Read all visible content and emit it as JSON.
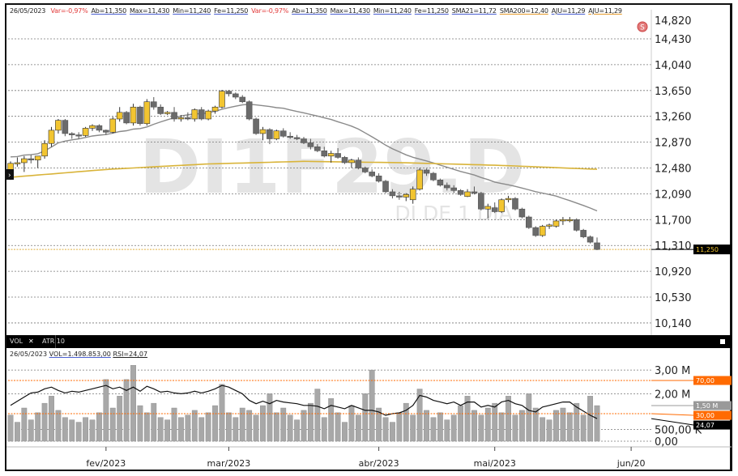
{
  "header": {
    "date": "26/05/2023",
    "items": [
      {
        "text": "Var=-0,97%",
        "style": "red"
      },
      {
        "text": "Ab=11,350",
        "style": "blue"
      },
      {
        "text": "Max=11,430",
        "style": "blue"
      },
      {
        "text": "Min=11,240",
        "style": "blue"
      },
      {
        "text": "Fe=11,250",
        "style": "blue"
      },
      {
        "text": "Var=-0,97%",
        "style": "red"
      },
      {
        "text": "Ab=11,350",
        "style": "gray"
      },
      {
        "text": "Max=11,430",
        "style": "blue"
      },
      {
        "text": "Min=11,240",
        "style": "blue"
      },
      {
        "text": "Fe=11,250",
        "style": "blue"
      },
      {
        "text": "SMA21=11,72",
        "style": "gray"
      },
      {
        "text": "SMA200=12,40",
        "style": "orange"
      },
      {
        "text": "AJU=11,29",
        "style": "blue"
      },
      {
        "text": "AJU=11,29",
        "style": "orange"
      }
    ]
  },
  "watermark": {
    "symbol": "DI1F29.D",
    "description": "DI DE 1 DIA"
  },
  "signal_icon": "S",
  "price_axis": {
    "ticks": [
      "14,820",
      "14,430",
      "14,040",
      "13,650",
      "13,260",
      "12,870",
      "12,480",
      "12,090",
      "11,700",
      "11,310",
      "10,920",
      "10,530",
      "10,140"
    ],
    "tick_values": [
      14.82,
      14.43,
      14.04,
      13.65,
      13.26,
      12.87,
      12.48,
      12.09,
      11.7,
      11.31,
      10.92,
      10.53,
      10.14
    ],
    "last_label": "11,250",
    "last_value": 11.25
  },
  "colors": {
    "up": "#f2c531",
    "down": "#6b6b6b",
    "sma21": "#8a8a8a",
    "sma200": "#d9b43a",
    "rsi_band": "#ff6a00",
    "volume": "#a8a8a8"
  },
  "lower_panel": {
    "tabs": [
      "VOL",
      "ATR 10"
    ],
    "close_tab_icon": "close-icon",
    "info": "26/05/2023",
    "vol_text": "VOL=1.498.853,00",
    "rsi_text": "RSI=24,07",
    "axis_ticks": [
      "3,00 M",
      "2,00 M",
      "500,00 K",
      "0,00"
    ],
    "axis_values": [
      3.0,
      2.0,
      0.5,
      0.0
    ],
    "rsi_levels": [
      {
        "label": "70,00",
        "value": 70
      },
      {
        "label": "30,00",
        "value": 30
      }
    ],
    "vol_last_label": "1,50 M",
    "rsi_last_label": "24,07"
  },
  "x_axis": [
    {
      "label": "fev/2023",
      "bar": 14
    },
    {
      "label": "mar/2023",
      "bar": 32
    },
    {
      "label": "abr/2023",
      "bar": 54
    },
    {
      "label": "mai/2023",
      "bar": 71
    },
    {
      "label": "jun/20",
      "bar": 91
    }
  ],
  "chart_data": {
    "type": "candlestick",
    "ohlc": [
      [
        12.35,
        12.58,
        12.3,
        12.55
      ],
      [
        12.55,
        12.64,
        12.5,
        12.56
      ],
      [
        12.56,
        12.66,
        12.42,
        12.62
      ],
      [
        12.62,
        12.68,
        12.55,
        12.6
      ],
      [
        12.6,
        12.66,
        12.48,
        12.66
      ],
      [
        12.66,
        12.9,
        12.62,
        12.85
      ],
      [
        12.85,
        13.1,
        12.8,
        13.05
      ],
      [
        13.05,
        13.22,
        13.0,
        13.2
      ],
      [
        13.2,
        13.22,
        12.96,
        13.0
      ],
      [
        13.0,
        13.02,
        12.92,
        12.98
      ],
      [
        12.98,
        13.02,
        12.92,
        12.97
      ],
      [
        12.97,
        13.1,
        12.95,
        13.08
      ],
      [
        13.08,
        13.14,
        13.04,
        13.12
      ],
      [
        13.12,
        13.14,
        13.02,
        13.05
      ],
      [
        13.05,
        13.06,
        12.98,
        13.02
      ],
      [
        13.02,
        13.25,
        13.0,
        13.22
      ],
      [
        13.22,
        13.4,
        13.18,
        13.32
      ],
      [
        13.32,
        13.34,
        13.14,
        13.16
      ],
      [
        13.16,
        13.45,
        13.12,
        13.4
      ],
      [
        13.4,
        13.42,
        13.12,
        13.15
      ],
      [
        13.15,
        13.52,
        13.12,
        13.48
      ],
      [
        13.48,
        13.55,
        13.36,
        13.4
      ],
      [
        13.4,
        13.44,
        13.28,
        13.3
      ],
      [
        13.3,
        13.34,
        13.28,
        13.32
      ],
      [
        13.32,
        13.4,
        13.18,
        13.22
      ],
      [
        13.22,
        13.28,
        13.18,
        13.24
      ],
      [
        13.24,
        13.32,
        13.2,
        13.22
      ],
      [
        13.22,
        13.38,
        13.18,
        13.36
      ],
      [
        13.36,
        13.4,
        13.2,
        13.22
      ],
      [
        13.22,
        13.36,
        13.2,
        13.34
      ],
      [
        13.34,
        13.42,
        13.3,
        13.4
      ],
      [
        13.4,
        13.66,
        13.38,
        13.64
      ],
      [
        13.64,
        13.66,
        13.56,
        13.6
      ],
      [
        13.6,
        13.62,
        13.52,
        13.55
      ],
      [
        13.55,
        13.58,
        13.46,
        13.48
      ],
      [
        13.48,
        13.5,
        13.2,
        13.22
      ],
      [
        13.22,
        13.24,
        12.98,
        13.0
      ],
      [
        13.0,
        13.1,
        12.9,
        13.06
      ],
      [
        13.06,
        13.08,
        12.84,
        12.92
      ],
      [
        12.92,
        13.06,
        12.9,
        13.04
      ],
      [
        13.04,
        13.08,
        12.94,
        12.96
      ],
      [
        12.96,
        13.02,
        12.92,
        12.94
      ],
      [
        12.94,
        12.98,
        12.9,
        12.92
      ],
      [
        12.92,
        12.95,
        12.84,
        12.86
      ],
      [
        12.86,
        12.92,
        12.76,
        12.8
      ],
      [
        12.8,
        12.84,
        12.72,
        12.74
      ],
      [
        12.74,
        12.8,
        12.64,
        12.66
      ],
      [
        12.66,
        12.74,
        12.56,
        12.7
      ],
      [
        12.7,
        12.78,
        12.62,
        12.64
      ],
      [
        12.64,
        12.66,
        12.54,
        12.56
      ],
      [
        12.56,
        12.62,
        12.48,
        12.6
      ],
      [
        12.6,
        12.64,
        12.46,
        12.48
      ],
      [
        12.48,
        12.5,
        12.4,
        12.42
      ],
      [
        12.42,
        12.46,
        12.34,
        12.36
      ],
      [
        12.36,
        12.4,
        12.26,
        12.28
      ],
      [
        12.28,
        12.3,
        12.1,
        12.12
      ],
      [
        12.12,
        12.16,
        12.02,
        12.06
      ],
      [
        12.06,
        12.12,
        12.0,
        12.04
      ],
      [
        12.04,
        12.1,
        11.98,
        12.08
      ],
      [
        12.0,
        12.2,
        11.94,
        12.16
      ],
      [
        12.16,
        12.48,
        12.14,
        12.45
      ],
      [
        12.45,
        12.47,
        12.36,
        12.4
      ],
      [
        12.4,
        12.42,
        12.28,
        12.3
      ],
      [
        12.3,
        12.32,
        12.2,
        12.22
      ],
      [
        12.22,
        12.26,
        12.14,
        12.18
      ],
      [
        12.18,
        12.22,
        12.1,
        12.14
      ],
      [
        12.14,
        12.16,
        12.06,
        12.08
      ],
      [
        12.05,
        12.16,
        12.04,
        12.12
      ],
      [
        12.12,
        12.2,
        12.08,
        12.1
      ],
      [
        12.1,
        12.12,
        11.84,
        11.86
      ],
      [
        11.86,
        11.94,
        11.72,
        11.9
      ],
      [
        11.88,
        11.96,
        11.8,
        11.82
      ],
      [
        11.82,
        12.02,
        11.8,
        12.0
      ],
      [
        12.0,
        12.06,
        11.96,
        12.02
      ],
      [
        12.02,
        12.04,
        11.84,
        11.86
      ],
      [
        11.86,
        11.88,
        11.72,
        11.74
      ],
      [
        11.74,
        11.76,
        11.56,
        11.58
      ],
      [
        11.58,
        11.6,
        11.44,
        11.46
      ],
      [
        11.46,
        11.62,
        11.44,
        11.6
      ],
      [
        11.6,
        11.64,
        11.56,
        11.62
      ],
      [
        11.6,
        11.7,
        11.58,
        11.68
      ],
      [
        11.68,
        11.74,
        11.62,
        11.7
      ],
      [
        11.7,
        11.74,
        11.66,
        11.7
      ],
      [
        11.7,
        11.72,
        11.52,
        11.54
      ],
      [
        11.54,
        11.56,
        11.42,
        11.44
      ],
      [
        11.44,
        11.46,
        11.34,
        11.36
      ],
      [
        11.35,
        11.43,
        11.24,
        11.25
      ]
    ],
    "volume_millions": [
      1.1,
      0.8,
      1.4,
      0.9,
      1.2,
      1.6,
      1.9,
      1.3,
      1.0,
      0.9,
      0.8,
      1.0,
      0.9,
      1.2,
      2.6,
      1.4,
      1.9,
      2.6,
      3.2,
      1.5,
      1.2,
      1.6,
      1.0,
      0.9,
      1.4,
      1.0,
      1.1,
      1.3,
      1.0,
      1.2,
      1.5,
      2.4,
      1.2,
      1.0,
      1.4,
      1.3,
      1.1,
      1.5,
      2.0,
      1.2,
      1.4,
      1.1,
      0.9,
      1.3,
      1.6,
      2.2,
      1.0,
      1.8,
      1.2,
      0.8,
      1.5,
      1.1,
      2.0,
      3.0,
      1.4,
      1.0,
      0.8,
      1.2,
      1.6,
      1.1,
      2.2,
      1.3,
      1.0,
      1.2,
      0.9,
      1.1,
      1.5,
      1.9,
      1.3,
      1.1,
      1.4,
      1.6,
      1.2,
      1.9,
      1.1,
      1.3,
      2.0,
      1.4,
      1.0,
      0.9,
      1.3,
      1.4,
      1.2,
      1.6,
      1.1,
      1.9,
      1.5
    ],
    "rsi": [
      40,
      45,
      50,
      55,
      56,
      60,
      62,
      58,
      55,
      57,
      56,
      58,
      60,
      62,
      64,
      60,
      62,
      58,
      62,
      57,
      63,
      60,
      56,
      57,
      55,
      54,
      55,
      57,
      55,
      57,
      60,
      64,
      62,
      58,
      54,
      46,
      42,
      45,
      42,
      46,
      44,
      43,
      42,
      40,
      40,
      39,
      36,
      40,
      38,
      36,
      40,
      37,
      34,
      34,
      32,
      28,
      30,
      31,
      34,
      40,
      52,
      50,
      46,
      44,
      42,
      44,
      40,
      44,
      44,
      38,
      40,
      38,
      44,
      46,
      42,
      40,
      34,
      32,
      38,
      40,
      42,
      44,
      44,
      38,
      33,
      28,
      24
    ],
    "sma200_keypoints": [
      12.34,
      12.46,
      12.54,
      12.58,
      12.56,
      12.52,
      12.46
    ],
    "y_range": [
      10.14,
      14.82
    ]
  }
}
